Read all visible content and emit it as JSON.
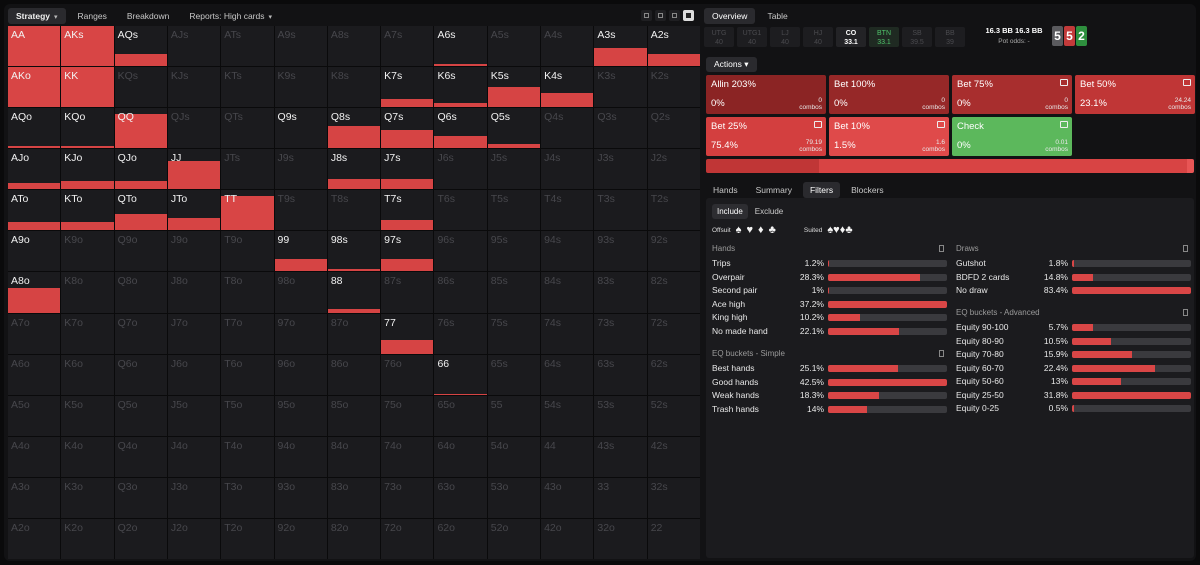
{
  "left_tabs": [
    {
      "label": "Strategy",
      "caret": "▾",
      "active": true
    },
    {
      "label": "Ranges",
      "caret": "",
      "active": false
    },
    {
      "label": "Breakdown",
      "caret": "",
      "active": false
    },
    {
      "label": "Reports: High cards",
      "caret": "▾",
      "active": false
    }
  ],
  "grid": {
    "labels": [
      [
        "AA",
        "AKs",
        "AQs",
        "AJs",
        "ATs",
        "A9s",
        "A8s",
        "A7s",
        "A6s",
        "A5s",
        "A4s",
        "A3s",
        "A2s"
      ],
      [
        "AKo",
        "KK",
        "KQs",
        "KJs",
        "KTs",
        "K9s",
        "K8s",
        "K7s",
        "K6s",
        "K5s",
        "K4s",
        "K3s",
        "K2s"
      ],
      [
        "AQo",
        "KQo",
        "QQ",
        "QJs",
        "QTs",
        "Q9s",
        "Q8s",
        "Q7s",
        "Q6s",
        "Q5s",
        "Q4s",
        "Q3s",
        "Q2s"
      ],
      [
        "AJo",
        "KJo",
        "QJo",
        "JJ",
        "JTs",
        "J9s",
        "J8s",
        "J7s",
        "J6s",
        "J5s",
        "J4s",
        "J3s",
        "J2s"
      ],
      [
        "ATo",
        "KTo",
        "QTo",
        "JTo",
        "TT",
        "T9s",
        "T8s",
        "T7s",
        "T6s",
        "T5s",
        "T4s",
        "T3s",
        "T2s"
      ],
      [
        "A9o",
        "K9o",
        "Q9o",
        "J9o",
        "T9o",
        "99",
        "98s",
        "97s",
        "96s",
        "95s",
        "94s",
        "93s",
        "92s"
      ],
      [
        "A8o",
        "K8o",
        "Q8o",
        "J8o",
        "T8o",
        "98o",
        "88",
        "87s",
        "86s",
        "85s",
        "84s",
        "83s",
        "82s"
      ],
      [
        "A7o",
        "K7o",
        "Q7o",
        "J7o",
        "T7o",
        "97o",
        "87o",
        "77",
        "76s",
        "75s",
        "74s",
        "73s",
        "72s"
      ],
      [
        "A6o",
        "K6o",
        "Q6o",
        "J6o",
        "T6o",
        "96o",
        "86o",
        "76o",
        "66",
        "65s",
        "64s",
        "63s",
        "62s"
      ],
      [
        "A5o",
        "K5o",
        "Q5o",
        "J5o",
        "T5o",
        "95o",
        "85o",
        "75o",
        "65o",
        "55",
        "54s",
        "53s",
        "52s"
      ],
      [
        "A4o",
        "K4o",
        "Q4o",
        "J4o",
        "T4o",
        "94o",
        "84o",
        "74o",
        "64o",
        "54o",
        "44",
        "43s",
        "42s"
      ],
      [
        "A3o",
        "K3o",
        "Q3o",
        "J3o",
        "T3o",
        "93o",
        "83o",
        "73o",
        "63o",
        "53o",
        "43o",
        "33",
        "32s"
      ],
      [
        "A2o",
        "K2o",
        "Q2o",
        "J2o",
        "T2o",
        "92o",
        "82o",
        "72o",
        "62o",
        "52o",
        "42o",
        "32o",
        "22"
      ]
    ],
    "active": [
      "AA",
      "AKs",
      "AQs",
      "A6s",
      "A3s",
      "A2s",
      "AKo",
      "KK",
      "K7s",
      "K6s",
      "K5s",
      "K4s",
      "AQo",
      "KQo",
      "QQ",
      "Q9s",
      "Q8s",
      "Q7s",
      "Q6s",
      "Q5s",
      "AJo",
      "KJo",
      "QJo",
      "JJ",
      "J8s",
      "J7s",
      "ATo",
      "KTo",
      "QTo",
      "JTo",
      "TT",
      "T7s",
      "A9o",
      "99",
      "98s",
      "97s",
      "A8o",
      "88",
      "77",
      "66"
    ],
    "fill": {
      "AA": [
        1,
        1
      ],
      "AKs": [
        1,
        1
      ],
      "AQs": [
        1,
        0.3
      ],
      "A6s": [
        1,
        0.06
      ],
      "A3s": [
        1,
        0.45
      ],
      "A2s": [
        1,
        0.3
      ],
      "AKo": [
        1,
        1
      ],
      "KK": [
        1,
        1
      ],
      "K7s": [
        1,
        0.2
      ],
      "K6s": [
        1,
        0.1
      ],
      "K5s": [
        1,
        0.5
      ],
      "K4s": [
        1,
        0.35
      ],
      "AQo": [
        1,
        0.05
      ],
      "KQo": [
        1,
        0.05
      ],
      "QQ": [
        1,
        0.85
      ],
      "Q8s": [
        1,
        0.55
      ],
      "Q7s": [
        1,
        0.45
      ],
      "Q6s": [
        1,
        0.3
      ],
      "Q5s": [
        1,
        0.1
      ],
      "AJo": [
        1,
        0.15
      ],
      "KJo": [
        1,
        0.2
      ],
      "QJo": [
        1,
        0.2
      ],
      "JJ": [
        1,
        0.7
      ],
      "J8s": [
        1,
        0.25
      ],
      "J7s": [
        1,
        0.25
      ],
      "ATo": [
        1,
        0.2
      ],
      "KTo": [
        1,
        0.2
      ],
      "QTo": [
        1,
        0.4
      ],
      "JTo": [
        1,
        0.3
      ],
      "TT": [
        1,
        0.85
      ],
      "T7s": [
        1,
        0.25
      ],
      "99": [
        1,
        0.3
      ],
      "98s": [
        1,
        0.05
      ],
      "97s": [
        1,
        0.3
      ],
      "A8o": [
        1,
        0.6
      ],
      "88": [
        1,
        0.1
      ],
      "77": [
        1,
        0.35
      ],
      "66": [
        1,
        0.03
      ]
    }
  },
  "top_tabs": [
    {
      "label": "Overview",
      "active": true
    },
    {
      "label": "Table",
      "active": false
    }
  ],
  "positions": [
    {
      "name": "UTG",
      "val": "40",
      "cls": ""
    },
    {
      "name": "UTG1",
      "val": "40",
      "cls": ""
    },
    {
      "name": "LJ",
      "val": "40",
      "cls": ""
    },
    {
      "name": "HJ",
      "val": "40",
      "cls": ""
    },
    {
      "name": "CO",
      "val": "33.1",
      "cls": "co"
    },
    {
      "name": "BTN",
      "val": "33.1",
      "cls": "btn"
    },
    {
      "name": "SB",
      "val": "39.5",
      "cls": ""
    },
    {
      "name": "BB",
      "val": "39",
      "cls": ""
    }
  ],
  "pot": {
    "a": "16.3 BB",
    "b": "16.3 BB",
    "odds": "Pot odds: -"
  },
  "board": [
    {
      "rank": "5",
      "color": "#5a5a5e"
    },
    {
      "rank": "5",
      "color": "#c23a3a"
    },
    {
      "rank": "2",
      "color": "#2e8f3e"
    }
  ],
  "actions_label": "Actions ▾",
  "actions": [
    {
      "name": "Allin 203%",
      "pct": "0%",
      "combos": "0",
      "unit": "combos",
      "color": "#8b2424",
      "icon": false
    },
    {
      "name": "Bet 100%",
      "pct": "0%",
      "combos": "0",
      "unit": "combos",
      "color": "#962828",
      "icon": false
    },
    {
      "name": "Bet 75%",
      "pct": "0%",
      "combos": "0",
      "unit": "combos",
      "color": "#a82e2e",
      "icon": true
    },
    {
      "name": "Bet 50%",
      "pct": "23.1%",
      "combos": "24.24",
      "unit": "combos",
      "color": "#c03636",
      "icon": true
    },
    {
      "name": "Bet 25%",
      "pct": "75.4%",
      "combos": "79.19",
      "unit": "combos",
      "color": "#d33f3f",
      "icon": true
    },
    {
      "name": "Bet 10%",
      "pct": "1.5%",
      "combos": "1.6",
      "unit": "combos",
      "color": "#df4a4a",
      "icon": true
    },
    {
      "name": "Check",
      "pct": "0%",
      "combos": "0.01",
      "unit": "combos",
      "color": "#5cb85c",
      "icon": true
    }
  ],
  "freq": [
    {
      "v": 23.1,
      "c": "#c03636"
    },
    {
      "v": 75.4,
      "c": "#d84444"
    },
    {
      "v": 1.5,
      "c": "#e85555"
    }
  ],
  "sub_tabs": [
    {
      "label": "Hands",
      "active": false
    },
    {
      "label": "Summary",
      "active": false
    },
    {
      "label": "Filters",
      "active": true
    },
    {
      "label": "Blockers",
      "active": false
    }
  ],
  "include": [
    "Include",
    "Exclude"
  ],
  "offsuit_label": "Offsuit",
  "suited_label": "Suited",
  "sections": [
    {
      "title": "Hands",
      "col": 0,
      "top": 46,
      "rows": [
        [
          "Trips",
          "1.2%",
          1.2
        ],
        [
          "Overpair",
          "28.3%",
          77
        ],
        [
          "Second pair",
          "1%",
          1
        ],
        [
          "Ace high",
          "37.2%",
          100
        ],
        [
          "King high",
          "10.2%",
          27
        ],
        [
          "No made hand",
          "22.1%",
          60
        ]
      ]
    },
    {
      "title": "EQ buckets - Simple",
      "col": 0,
      "top": 151,
      "rows": [
        [
          "Best hands",
          "25.1%",
          59
        ],
        [
          "Good hands",
          "42.5%",
          100
        ],
        [
          "Weak hands",
          "18.3%",
          43
        ],
        [
          "Trash hands",
          "14%",
          33
        ]
      ]
    },
    {
      "title": "Draws",
      "col": 1,
      "top": 46,
      "rows": [
        [
          "Gutshot",
          "1.8%",
          2
        ],
        [
          "BDFD 2 cards",
          "14.8%",
          18
        ],
        [
          "No draw",
          "83.4%",
          100
        ]
      ]
    },
    {
      "title": "EQ buckets - Advanced",
      "col": 1,
      "top": 110,
      "rows": [
        [
          "Equity 90-100",
          "5.7%",
          18
        ],
        [
          "Equity 80-90",
          "10.5%",
          33
        ],
        [
          "Equity 70-80",
          "15.9%",
          50
        ],
        [
          "Equity 60-70",
          "22.4%",
          70
        ],
        [
          "Equity 50-60",
          "13%",
          41
        ],
        [
          "Equity 25-50",
          "31.8%",
          100
        ],
        [
          "Equity 0-25",
          "0.5%",
          2
        ]
      ]
    }
  ]
}
